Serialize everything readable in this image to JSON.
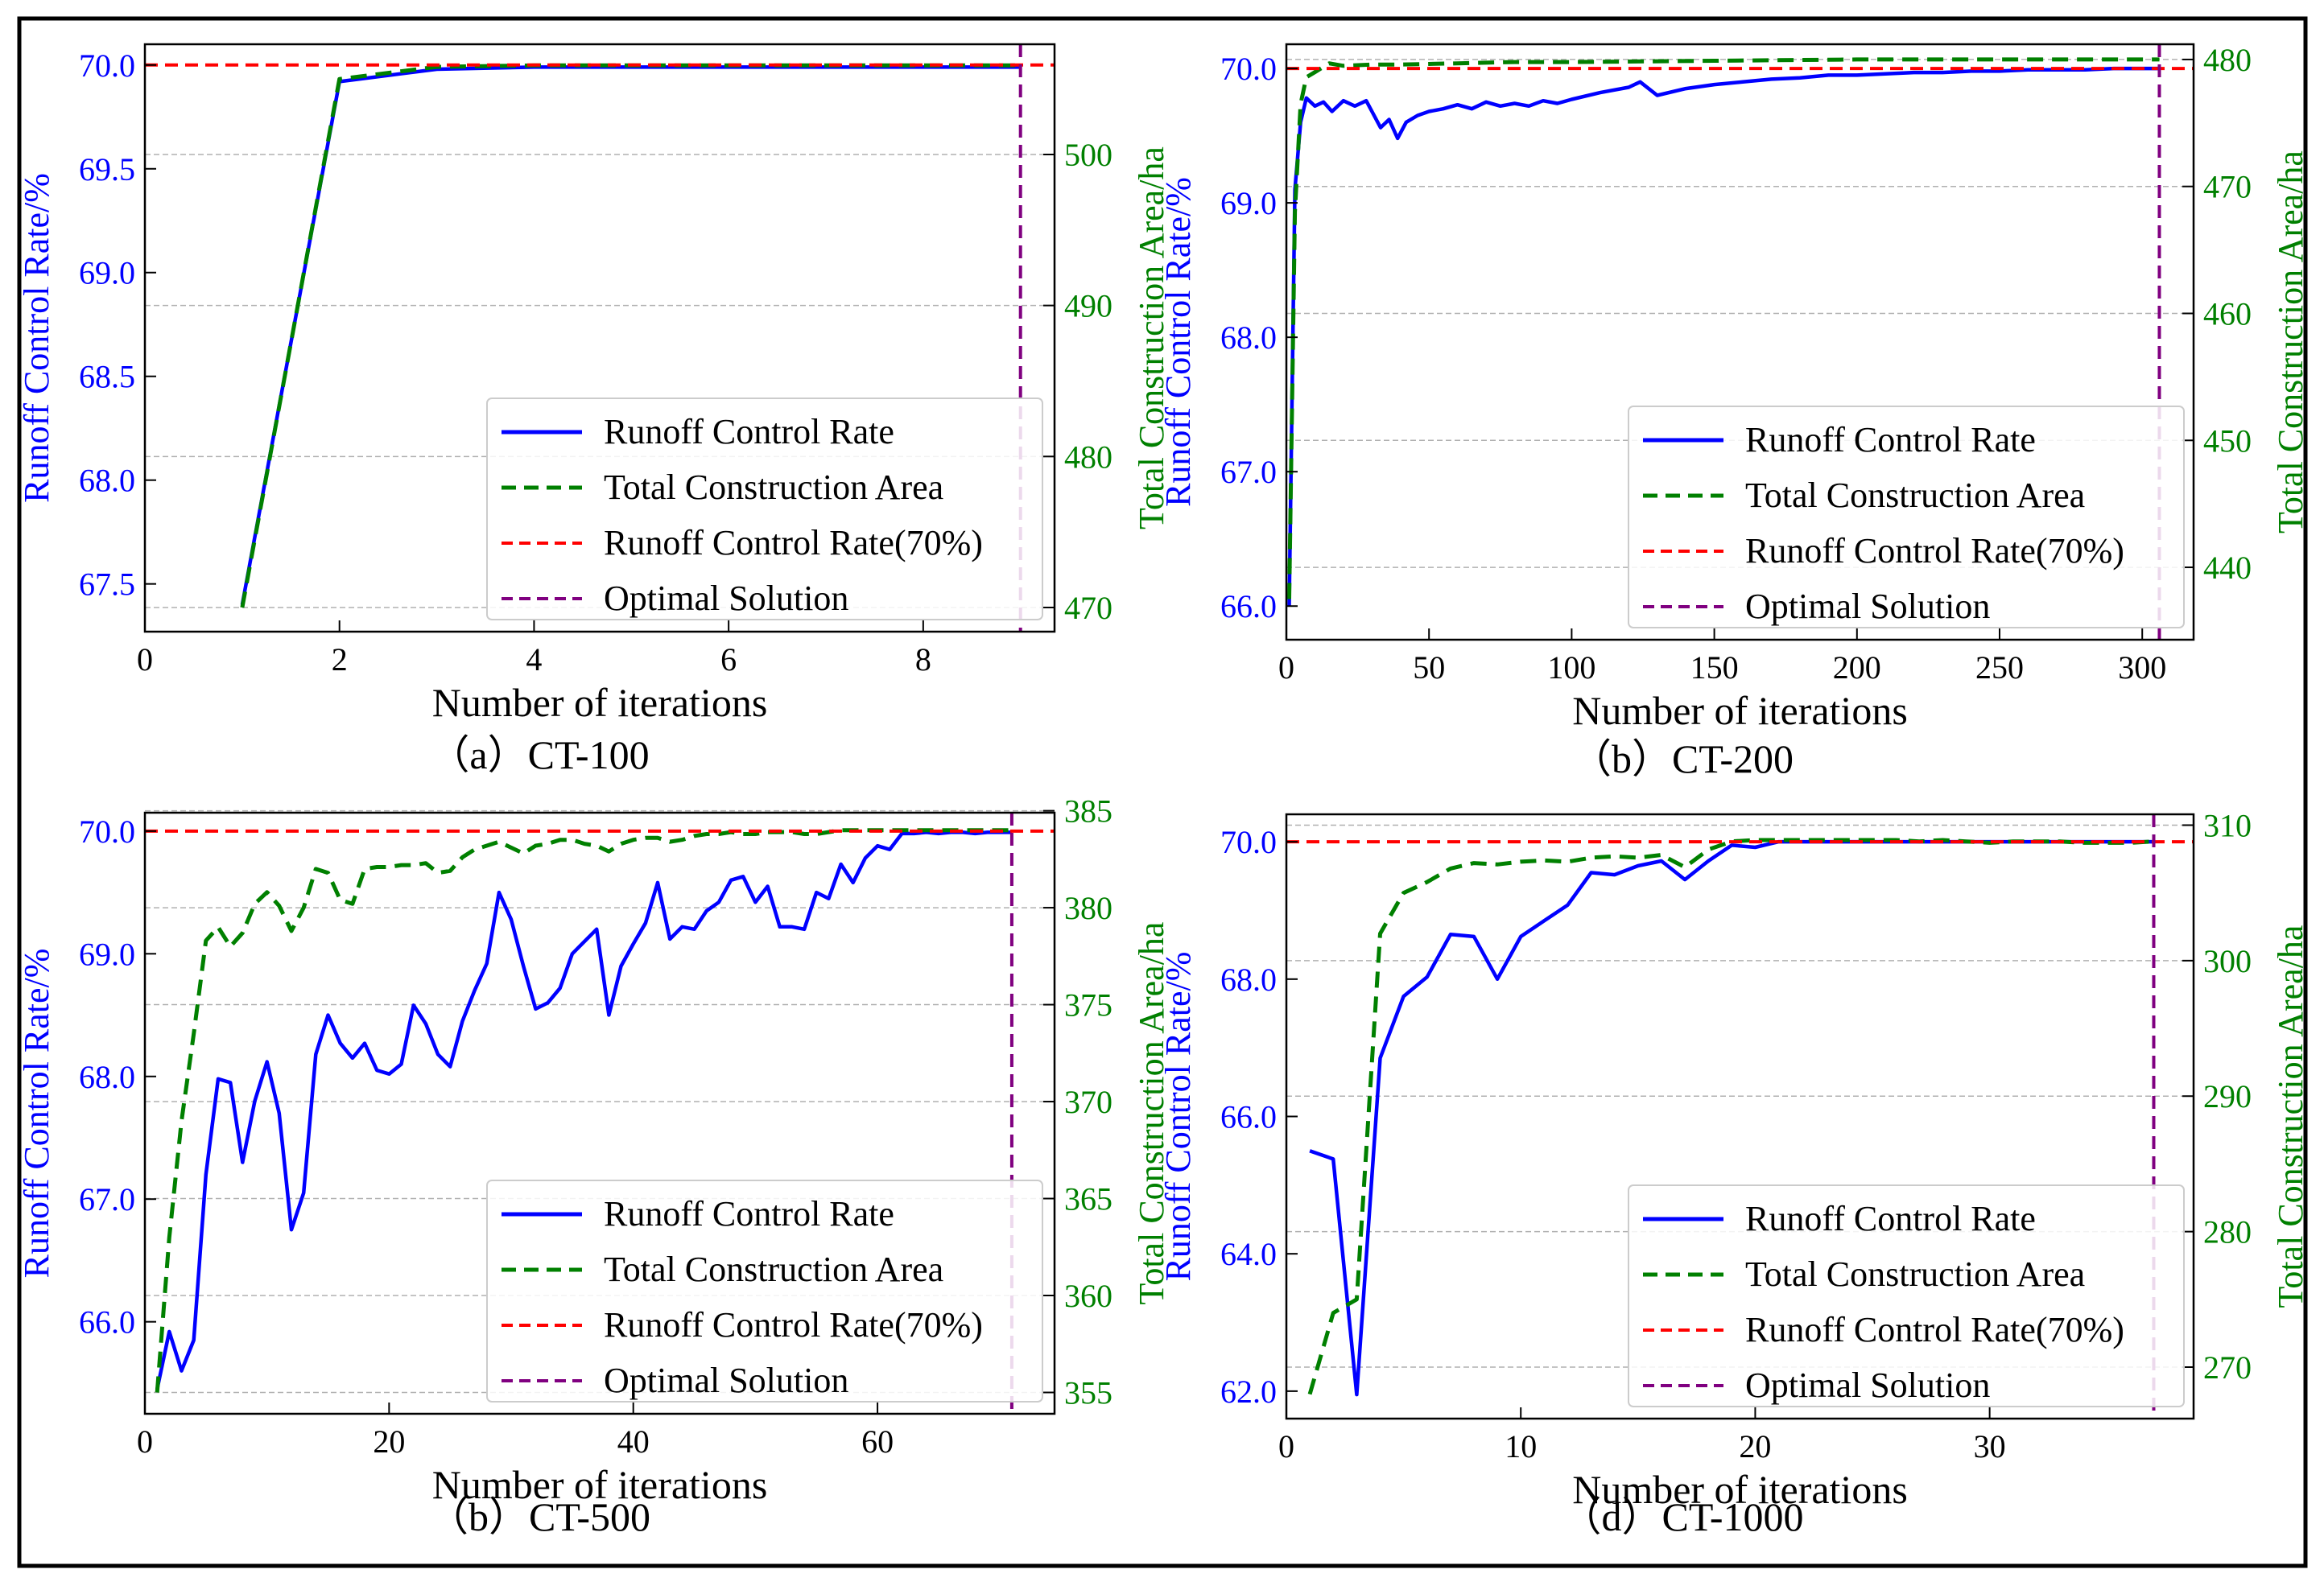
{
  "colors": {
    "rate": "#0000ff",
    "area": "#008000",
    "target": "#ff0000",
    "optimal": "#800080",
    "grid": "#b0b0b0",
    "frame": "#000000"
  },
  "chart_data": [
    {
      "type": "line",
      "caption": "（a）CT-100",
      "xlabel": "Number of iterations",
      "ylabel_left": "Runoff Control Rate/%",
      "ylabel_right": "Total Construction Area/ha",
      "xlim": [
        0,
        9.35
      ],
      "ylim_left": [
        67.27,
        70.1
      ],
      "ylim_right": [
        468.4,
        507.3
      ],
      "xticks": [
        0,
        2,
        4,
        6,
        8
      ],
      "yticks_left": [
        67.5,
        68.0,
        68.5,
        69.0,
        69.5,
        70.0
      ],
      "yticks_right": [
        470,
        480,
        490,
        500
      ],
      "target_rate": 70.0,
      "optimal_x": 9,
      "legend_position": "lower-right",
      "legend": [
        "Runoff Control Rate",
        "Total Construction Area",
        "Runoff Control Rate(70%)",
        "Optimal Solution"
      ],
      "series": [
        {
          "name": "Runoff Control Rate",
          "axis": "left",
          "style": "solid",
          "x": [
            1,
            2,
            3,
            4,
            5,
            6,
            7,
            8,
            9
          ],
          "values": [
            67.4,
            69.92,
            69.98,
            69.99,
            69.99,
            69.99,
            69.99,
            69.99,
            69.99
          ]
        },
        {
          "name": "Total Construction Area",
          "axis": "right",
          "style": "dashed",
          "x": [
            1,
            2,
            3,
            4,
            5,
            6,
            7,
            8,
            9
          ],
          "values": [
            470.0,
            505.0,
            505.8,
            505.9,
            505.9,
            505.9,
            505.9,
            505.9,
            505.9
          ]
        }
      ]
    },
    {
      "type": "line",
      "caption": "（b）CT-200",
      "xlabel": "Number of iterations",
      "ylabel_left": "Runoff Control Rate/%",
      "ylabel_right": "Total Construction Area/ha",
      "xlim": [
        0,
        318
      ],
      "ylim_left": [
        65.75,
        70.18
      ],
      "ylim_right": [
        434.3,
        481.2
      ],
      "xticks": [
        0,
        50,
        100,
        150,
        200,
        250,
        300
      ],
      "yticks_left": [
        66.0,
        67.0,
        68.0,
        69.0,
        70.0
      ],
      "yticks_right": [
        440,
        450,
        460,
        470,
        480
      ],
      "target_rate": 70.0,
      "optimal_x": 306,
      "legend_position": "lower-right",
      "legend": [
        "Runoff Control Rate",
        "Total Construction Area",
        "Runoff Control Rate(70%)",
        "Optimal Solution"
      ],
      "series": [
        {
          "name": "Runoff Control Rate",
          "axis": "left",
          "style": "solid",
          "x": [
            1,
            3,
            5,
            7,
            10,
            13,
            16,
            20,
            24,
            28,
            30,
            33,
            36,
            39,
            42,
            46,
            50,
            55,
            60,
            65,
            70,
            75,
            80,
            85,
            90,
            95,
            100,
            110,
            120,
            124,
            130,
            140,
            150,
            160,
            170,
            180,
            190,
            200,
            210,
            220,
            230,
            240,
            250,
            260,
            270,
            280,
            290,
            300,
            306
          ],
          "values": [
            66.0,
            69.1,
            69.6,
            69.78,
            69.72,
            69.75,
            69.68,
            69.76,
            69.72,
            69.76,
            69.68,
            69.56,
            69.62,
            69.48,
            69.6,
            69.65,
            69.68,
            69.7,
            69.73,
            69.7,
            69.75,
            69.72,
            69.74,
            69.72,
            69.76,
            69.74,
            69.77,
            69.82,
            69.86,
            69.9,
            69.8,
            69.85,
            69.88,
            69.9,
            69.92,
            69.93,
            69.95,
            69.95,
            69.96,
            69.97,
            69.97,
            69.98,
            69.98,
            69.99,
            69.99,
            69.99,
            70.0,
            70.0,
            70.0
          ]
        },
        {
          "name": "Total Construction Area",
          "axis": "right",
          "style": "dashed",
          "x": [
            1,
            3,
            5,
            7,
            10,
            15,
            20,
            30,
            40,
            60,
            80,
            100,
            150,
            200,
            250,
            306
          ],
          "values": [
            437.5,
            468.0,
            476.5,
            478.6,
            479.0,
            479.7,
            479.5,
            479.6,
            479.6,
            479.7,
            479.8,
            479.8,
            479.9,
            480.0,
            480.0,
            480.0
          ]
        }
      ]
    },
    {
      "type": "line",
      "caption": "（b）CT-500",
      "xlabel": "Number of iterations",
      "ylabel_left": "Runoff Control Rate/%",
      "ylabel_right": "Total Construction Area/ha",
      "xlim": [
        0,
        74.5
      ],
      "ylim_left": [
        65.25,
        70.15
      ],
      "ylim_right": [
        353.9,
        384.9
      ],
      "xticks": [
        0,
        20,
        40,
        60
      ],
      "yticks_left": [
        66.0,
        67.0,
        68.0,
        69.0,
        70.0
      ],
      "yticks_right": [
        355,
        360,
        365,
        370,
        375,
        380,
        385
      ],
      "target_rate": 70.0,
      "optimal_x": 71,
      "legend_position": "lower-right",
      "legend": [
        "Runoff Control Rate",
        "Total Construction Area",
        "Runoff Control Rate(70%)",
        "Optimal Solution"
      ],
      "series": [
        {
          "name": "Runoff Control Rate",
          "axis": "left",
          "style": "solid",
          "x": [
            1,
            2,
            3,
            4,
            5,
            6,
            7,
            8,
            9,
            10,
            11,
            12,
            13,
            14,
            15,
            16,
            17,
            18,
            19,
            20,
            21,
            22,
            23,
            24,
            25,
            26,
            27,
            28,
            29,
            30,
            31,
            32,
            33,
            34,
            35,
            36,
            37,
            38,
            39,
            40,
            41,
            42,
            43,
            44,
            45,
            46,
            47,
            48,
            49,
            50,
            51,
            52,
            53,
            54,
            55,
            56,
            57,
            58,
            59,
            60,
            61,
            62,
            63,
            64,
            65,
            66,
            67,
            68,
            69,
            70,
            71
          ],
          "values": [
            65.45,
            65.92,
            65.6,
            65.85,
            67.2,
            67.98,
            67.95,
            67.3,
            67.8,
            68.12,
            67.7,
            66.75,
            67.05,
            68.18,
            68.5,
            68.27,
            68.15,
            68.27,
            68.05,
            68.02,
            68.1,
            68.58,
            68.43,
            68.18,
            68.08,
            68.45,
            68.7,
            68.92,
            69.5,
            69.28,
            68.9,
            68.55,
            68.6,
            68.72,
            69.0,
            69.1,
            69.2,
            68.5,
            68.9,
            69.08,
            69.25,
            69.58,
            69.12,
            69.22,
            69.2,
            69.35,
            69.42,
            69.6,
            69.63,
            69.42,
            69.55,
            69.22,
            69.22,
            69.2,
            69.5,
            69.45,
            69.73,
            69.58,
            69.78,
            69.88,
            69.85,
            69.98,
            69.98,
            69.99,
            69.98,
            69.99,
            69.99,
            69.98,
            69.99,
            69.99,
            69.99
          ]
        },
        {
          "name": "Total Construction Area",
          "axis": "right",
          "style": "dashed",
          "x": [
            1,
            2,
            3,
            4,
            5,
            6,
            7,
            8,
            9,
            10,
            11,
            12,
            13,
            14,
            15,
            16,
            17,
            18,
            19,
            20,
            21,
            22,
            23,
            24,
            25,
            26,
            27,
            28,
            29,
            30,
            31,
            32,
            33,
            34,
            35,
            36,
            37,
            38,
            39,
            40,
            41,
            42,
            43,
            44,
            45,
            46,
            47,
            48,
            49,
            50,
            51,
            52,
            53,
            54,
            55,
            56,
            57,
            58,
            59,
            60,
            61,
            62,
            63,
            64,
            65,
            66,
            67,
            68,
            69,
            70,
            71
          ],
          "values": [
            355.0,
            363.0,
            369.0,
            373.5,
            378.3,
            379.0,
            378.0,
            378.7,
            380.2,
            380.8,
            380.1,
            378.8,
            380.0,
            382.0,
            381.8,
            380.4,
            380.2,
            382.0,
            382.1,
            382.1,
            382.2,
            382.2,
            382.3,
            381.8,
            381.9,
            382.6,
            383.0,
            383.2,
            383.4,
            383.1,
            382.8,
            383.2,
            383.3,
            383.5,
            383.5,
            383.3,
            383.2,
            382.9,
            383.3,
            383.5,
            383.6,
            383.6,
            383.4,
            383.5,
            383.7,
            383.8,
            383.8,
            383.9,
            383.8,
            383.8,
            383.9,
            383.9,
            383.9,
            383.8,
            383.8,
            383.9,
            384.0,
            384.0,
            384.0,
            384.0,
            384.0,
            384.0,
            384.0,
            384.0,
            384.0,
            384.0,
            384.0,
            384.0,
            384.0,
            384.0,
            384.0
          ]
        }
      ]
    },
    {
      "type": "line",
      "caption": "（d）CT-1000",
      "xlabel": "Number of iterations",
      "ylabel_left": "Runoff Control Rate/%",
      "ylabel_right": "Total Construction Area/ha",
      "xlim": [
        0,
        38.7
      ],
      "ylim_left": [
        61.6,
        70.4
      ],
      "ylim_right": [
        266.2,
        310.8
      ],
      "xticks": [
        0,
        10,
        20,
        30
      ],
      "yticks_left": [
        62.0,
        64.0,
        66.0,
        68.0,
        70.0
      ],
      "yticks_right": [
        270,
        280,
        290,
        300,
        310
      ],
      "target_rate": 70.0,
      "optimal_x": 37,
      "legend_position": "lower-right",
      "legend": [
        "Runoff Control Rate",
        "Total Construction Area",
        "Runoff Control Rate(70%)",
        "Optimal Solution"
      ],
      "series": [
        {
          "name": "Runoff Control Rate",
          "axis": "left",
          "style": "solid",
          "x": [
            1,
            2,
            3,
            4,
            5,
            6,
            7,
            8,
            9,
            10,
            11,
            12,
            13,
            14,
            15,
            16,
            17,
            18,
            19,
            20,
            21,
            22,
            23,
            24,
            25,
            26,
            27,
            28,
            29,
            30,
            31,
            32,
            33,
            34,
            35,
            36,
            37
          ],
          "values": [
            65.5,
            65.38,
            61.95,
            66.85,
            67.75,
            68.03,
            68.65,
            68.62,
            68.0,
            68.62,
            68.85,
            69.08,
            69.55,
            69.52,
            69.65,
            69.72,
            69.45,
            69.72,
            69.95,
            69.92,
            70.0,
            70.0,
            70.0,
            70.0,
            70.0,
            70.0,
            70.0,
            70.0,
            70.0,
            70.0,
            70.0,
            70.0,
            70.0,
            70.0,
            70.0,
            70.0,
            70.0
          ]
        },
        {
          "name": "Total Construction Area",
          "axis": "right",
          "style": "dashed",
          "x": [
            1,
            2,
            3,
            4,
            5,
            6,
            7,
            8,
            9,
            10,
            11,
            12,
            13,
            14,
            15,
            16,
            17,
            18,
            19,
            20,
            21,
            22,
            23,
            24,
            25,
            26,
            27,
            28,
            29,
            30,
            31,
            32,
            33,
            34,
            35,
            36,
            37
          ],
          "values": [
            268.0,
            274.0,
            275.0,
            302.0,
            305.0,
            305.8,
            306.8,
            307.2,
            307.1,
            307.3,
            307.4,
            307.3,
            307.6,
            307.7,
            307.6,
            307.8,
            306.9,
            308.2,
            308.8,
            308.9,
            308.9,
            308.9,
            308.9,
            308.9,
            308.9,
            308.9,
            308.8,
            308.9,
            308.8,
            308.7,
            308.8,
            308.8,
            308.8,
            308.7,
            308.7,
            308.7,
            308.8
          ]
        }
      ]
    }
  ]
}
